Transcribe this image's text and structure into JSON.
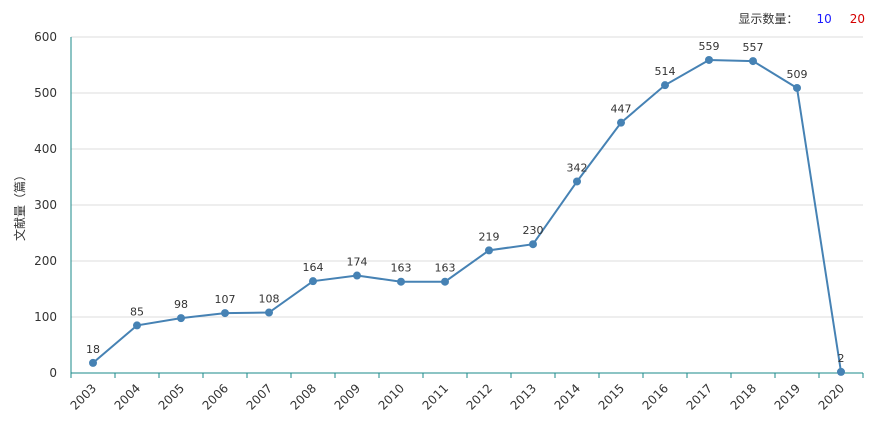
{
  "toolbar": {
    "label": "显示数量：",
    "options": [
      {
        "label": "10",
        "color": "#1a1aff"
      },
      {
        "label": "20",
        "color": "#d40000"
      }
    ]
  },
  "chart_data": {
    "type": "line",
    "ylabel": "文献量（篇）",
    "xlabel": "",
    "categories": [
      "2003",
      "2004",
      "2005",
      "2006",
      "2007",
      "2008",
      "2009",
      "2010",
      "2011",
      "2012",
      "2013",
      "2014",
      "2015",
      "2016",
      "2017",
      "2018",
      "2019",
      "2020"
    ],
    "values": [
      18,
      85,
      98,
      107,
      108,
      164,
      174,
      163,
      163,
      219,
      230,
      342,
      447,
      514,
      559,
      557,
      509,
      2
    ],
    "ylim": [
      0,
      600
    ],
    "yticks": [
      0,
      100,
      200,
      300,
      400,
      500,
      600
    ],
    "grid": true,
    "line_color": "#4682b4",
    "axis_color": "#1a8a8a",
    "grid_color": "#dddddd"
  }
}
